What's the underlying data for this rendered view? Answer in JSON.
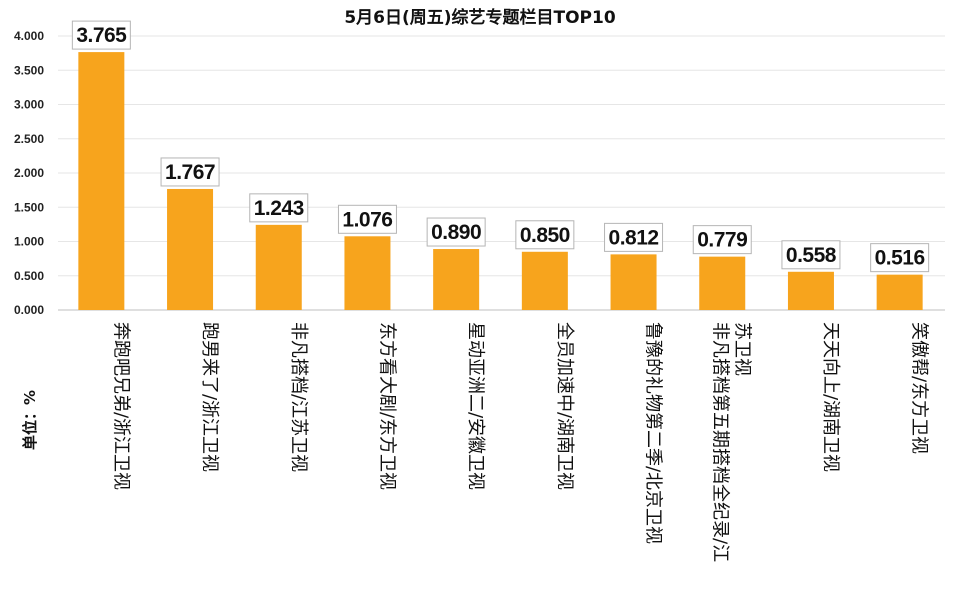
{
  "chart_data": {
    "type": "bar",
    "title": "5月6日(周五)综艺专题栏目TOP10",
    "unit_label": "单位：%",
    "categories": [
      "奔跑吧兄弟/浙江卫视",
      "跑男来了/浙江卫视",
      "非凡搭档/江苏卫视",
      "东方看大剧/东方卫视",
      "星动亚洲二/安徽卫视",
      "全员加速中/湖南卫视",
      "鲁豫的礼物第二季/北京卫视",
      "非凡搭档第五期搭档全纪录/江苏卫视",
      "天天向上/湖南卫视",
      "笑傲帮/东方卫视"
    ],
    "category_lines": [
      [
        "奔跑吧兄弟/浙江卫视"
      ],
      [
        "跑男来了/浙江卫视"
      ],
      [
        "非凡搭档/江苏卫视"
      ],
      [
        "东方看大剧/东方卫视"
      ],
      [
        "星动亚洲二/安徽卫视"
      ],
      [
        "全员加速中/湖南卫视"
      ],
      [
        "鲁豫的礼物第二季/北京卫视"
      ],
      [
        "非凡搭档第五期搭档全纪录/江",
        "苏卫视"
      ],
      [
        "天天向上/湖南卫视"
      ],
      [
        "笑傲帮/东方卫视"
      ]
    ],
    "values": [
      3.765,
      1.767,
      1.243,
      1.076,
      0.89,
      0.85,
      0.812,
      0.779,
      0.558,
      0.516
    ],
    "value_labels": [
      "3.765",
      "1.767",
      "1.243",
      "1.076",
      "0.890",
      "0.850",
      "0.812",
      "0.779",
      "0.558",
      "0.516"
    ],
    "y_ticks": [
      "0.000",
      "0.500",
      "1.000",
      "1.500",
      "2.000",
      "2.500",
      "3.000",
      "3.500",
      "4.000"
    ],
    "ylim": [
      0,
      4
    ],
    "grid": true,
    "legend": "none",
    "bar_color": "#F7A41D"
  }
}
